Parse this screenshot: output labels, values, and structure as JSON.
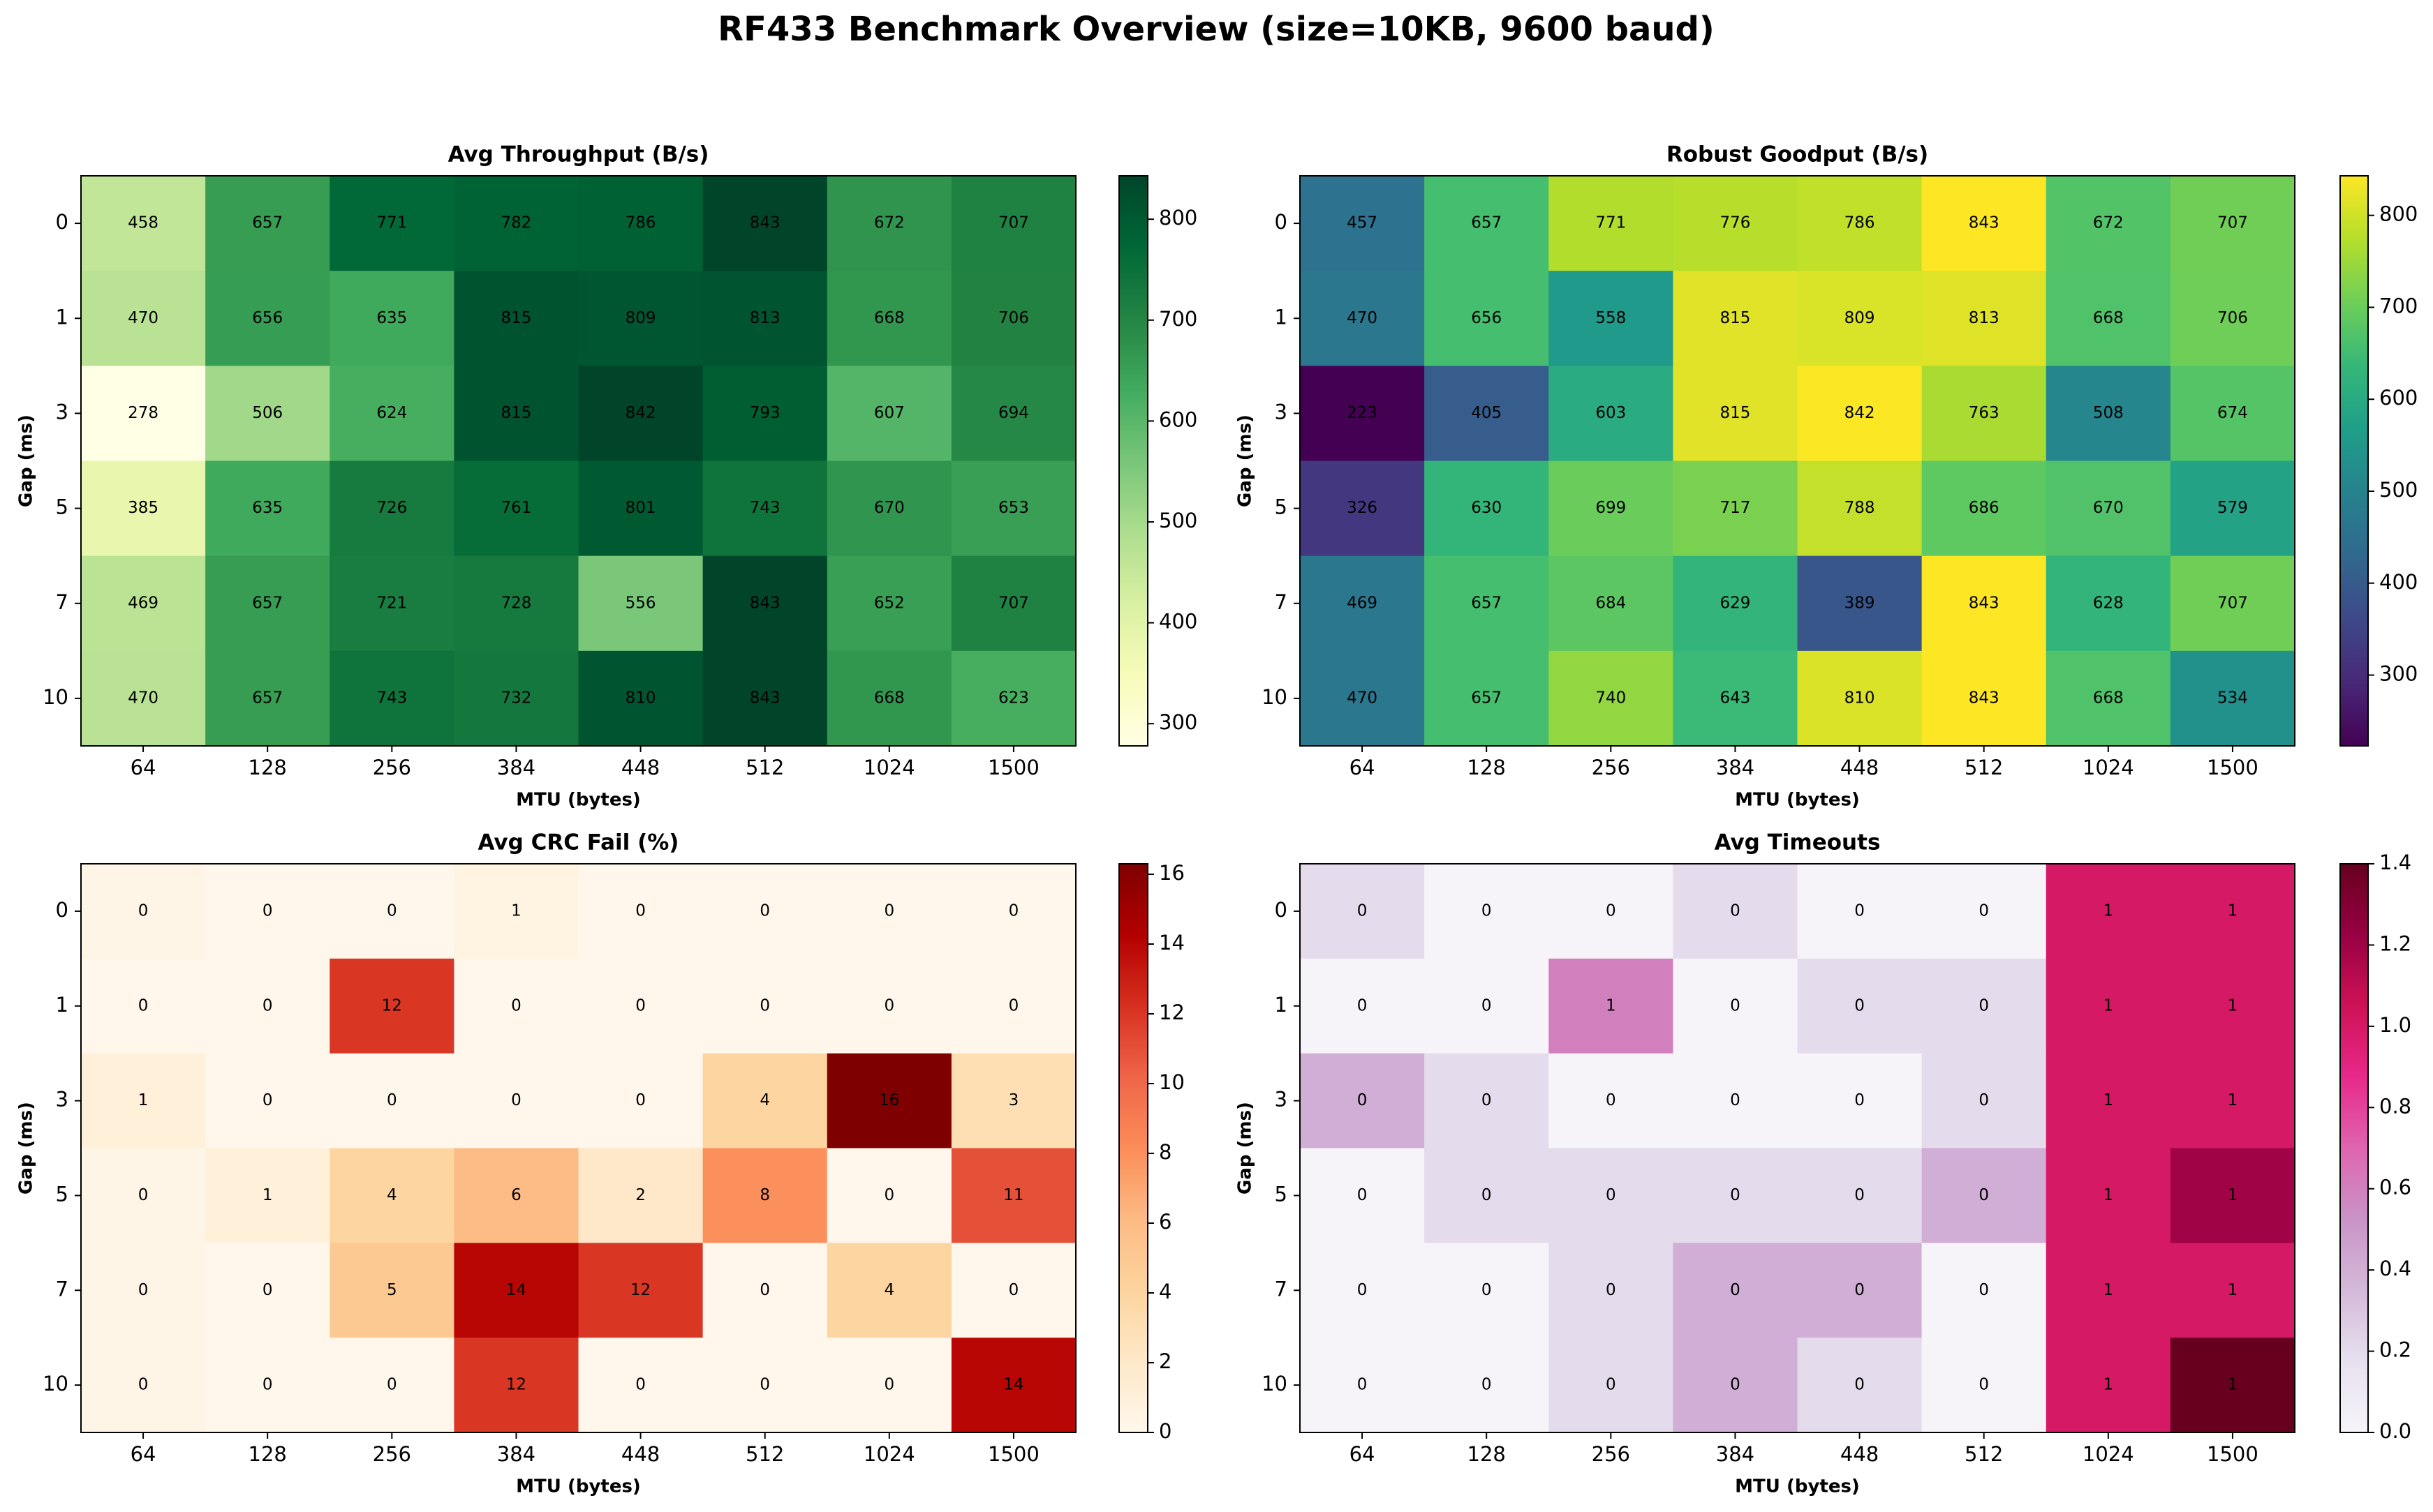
{
  "title": "RF433 Benchmark Overview (size=10KB, 9600 baud)",
  "chart_data": [
    {
      "type": "heatmap",
      "title": "Avg Throughput (B/s)",
      "xlabel": "MTU (bytes)",
      "ylabel": "Gap (ms)",
      "categories": [
        "64",
        "128",
        "256",
        "384",
        "448",
        "512",
        "1024",
        "1500"
      ],
      "rows": [
        "0",
        "1",
        "3",
        "5",
        "7",
        "10"
      ],
      "values": [
        [
          458,
          657,
          771,
          782,
          786,
          843,
          672,
          707
        ],
        [
          470,
          656,
          635,
          815,
          809,
          813,
          668,
          706
        ],
        [
          278,
          506,
          624,
          815,
          842,
          793,
          607,
          694
        ],
        [
          385,
          635,
          726,
          761,
          801,
          743,
          670,
          653
        ],
        [
          469,
          657,
          721,
          728,
          556,
          843,
          652,
          707
        ],
        [
          470,
          657,
          743,
          732,
          810,
          843,
          668,
          623
        ]
      ],
      "clim": [
        278,
        843
      ],
      "cticks": [
        300,
        400,
        500,
        600,
        700,
        800
      ],
      "colormap": [
        "#ffffe5",
        "#f7fcb9",
        "#d9f0a3",
        "#addd8e",
        "#78c679",
        "#41ab5d",
        "#238443",
        "#006837",
        "#004529"
      ]
    },
    {
      "type": "heatmap",
      "title": "Robust Goodput (B/s)",
      "xlabel": "MTU (bytes)",
      "ylabel": "Gap (ms)",
      "categories": [
        "64",
        "128",
        "256",
        "384",
        "448",
        "512",
        "1024",
        "1500"
      ],
      "rows": [
        "0",
        "1",
        "3",
        "5",
        "7",
        "10"
      ],
      "values": [
        [
          457,
          657,
          771,
          776,
          786,
          843,
          672,
          707
        ],
        [
          470,
          656,
          558,
          815,
          809,
          813,
          668,
          706
        ],
        [
          223,
          405,
          603,
          815,
          842,
          763,
          508,
          674
        ],
        [
          326,
          630,
          699,
          717,
          788,
          686,
          670,
          579
        ],
        [
          469,
          657,
          684,
          629,
          389,
          843,
          628,
          707
        ],
        [
          470,
          657,
          740,
          643,
          810,
          843,
          668,
          534
        ]
      ],
      "clim": [
        223,
        843
      ],
      "cticks": [
        300,
        400,
        500,
        600,
        700,
        800
      ],
      "colormap": [
        "#440154",
        "#482878",
        "#3e4989",
        "#31688e",
        "#26828e",
        "#1f9e89",
        "#35b779",
        "#6ece58",
        "#b5de2b",
        "#fde725"
      ]
    },
    {
      "type": "heatmap",
      "title": "Avg CRC Fail (%)",
      "xlabel": "MTU (bytes)",
      "ylabel": "Gap (ms)",
      "categories": [
        "64",
        "128",
        "256",
        "384",
        "448",
        "512",
        "1024",
        "1500"
      ],
      "rows": [
        "0",
        "1",
        "3",
        "5",
        "7",
        "10"
      ],
      "values": [
        [
          0.3,
          0,
          0,
          0.6,
          0,
          0,
          0,
          0
        ],
        [
          0,
          0,
          12,
          0,
          0,
          0,
          0,
          0
        ],
        [
          1,
          0,
          0,
          0,
          0,
          4,
          16.3,
          3
        ],
        [
          0.3,
          1,
          4,
          6,
          2,
          8,
          0,
          11
        ],
        [
          0.3,
          0,
          5,
          14,
          12,
          0,
          4,
          0
        ],
        [
          0.3,
          0,
          0,
          12,
          0,
          0,
          0,
          14
        ]
      ],
      "value_labels": [
        [
          "0",
          "0",
          "0",
          "1",
          "0",
          "0",
          "0",
          "0"
        ],
        [
          "0",
          "0",
          "12",
          "0",
          "0",
          "0",
          "0",
          "0"
        ],
        [
          "1",
          "0",
          "0",
          "0",
          "0",
          "4",
          "16",
          "3"
        ],
        [
          "0",
          "1",
          "4",
          "6",
          "2",
          "8",
          "0",
          "11"
        ],
        [
          "0",
          "0",
          "5",
          "14",
          "12",
          "0",
          "4",
          "0"
        ],
        [
          "0",
          "0",
          "0",
          "12",
          "0",
          "0",
          "0",
          "14"
        ]
      ],
      "clim": [
        0,
        16.3
      ],
      "cticks": [
        0,
        2,
        4,
        6,
        8,
        10,
        12,
        14,
        16
      ],
      "colormap": [
        "#fff7ec",
        "#fee8c8",
        "#fdd49e",
        "#fdbb84",
        "#fc8d59",
        "#ef6548",
        "#d7301f",
        "#b30000",
        "#7f0000"
      ]
    },
    {
      "type": "heatmap",
      "title": "Avg Timeouts",
      "xlabel": "MTU (bytes)",
      "ylabel": "Gap (ms)",
      "categories": [
        "64",
        "128",
        "256",
        "384",
        "448",
        "512",
        "1024",
        "1500"
      ],
      "rows": [
        "0",
        "1",
        "3",
        "5",
        "7",
        "10"
      ],
      "values": [
        [
          0.2,
          0,
          0,
          0.2,
          0,
          0,
          1,
          1
        ],
        [
          0,
          0,
          0.6,
          0,
          0.2,
          0.2,
          1,
          1
        ],
        [
          0.4,
          0.2,
          0,
          0,
          0,
          0.2,
          1,
          1
        ],
        [
          0,
          0.2,
          0.2,
          0.2,
          0.2,
          0.4,
          1,
          1.2
        ],
        [
          0,
          0,
          0.2,
          0.4,
          0.4,
          0,
          1,
          1
        ],
        [
          0,
          0,
          0.2,
          0.4,
          0.2,
          0,
          1,
          1.4
        ]
      ],
      "value_labels": [
        [
          "0",
          "0",
          "0",
          "0",
          "0",
          "0",
          "1",
          "1"
        ],
        [
          "0",
          "0",
          "1",
          "0",
          "0",
          "0",
          "1",
          "1"
        ],
        [
          "0",
          "0",
          "0",
          "0",
          "0",
          "0",
          "1",
          "1"
        ],
        [
          "0",
          "0",
          "0",
          "0",
          "0",
          "0",
          "1",
          "1"
        ],
        [
          "0",
          "0",
          "0",
          "0",
          "0",
          "0",
          "1",
          "1"
        ],
        [
          "0",
          "0",
          "0",
          "0",
          "0",
          "0",
          "1",
          "1"
        ]
      ],
      "clim": [
        0,
        1.4
      ],
      "cticks": [
        {
          "value": 0,
          "label": "0.0"
        },
        {
          "value": 0.2,
          "label": "0.2"
        },
        {
          "value": 0.4,
          "label": "0.4"
        },
        {
          "value": 0.6,
          "label": "0.6"
        },
        {
          "value": 0.8,
          "label": "0.8"
        },
        {
          "value": 1,
          "label": "1.0"
        },
        {
          "value": 1.2,
          "label": "1.2"
        },
        {
          "value": 1.4,
          "label": "1.4"
        }
      ],
      "colormap": [
        "#f7f4f9",
        "#e7e1ef",
        "#d4b9da",
        "#c994c7",
        "#df65b0",
        "#e7298a",
        "#ce1256",
        "#980043",
        "#67001f"
      ]
    }
  ]
}
